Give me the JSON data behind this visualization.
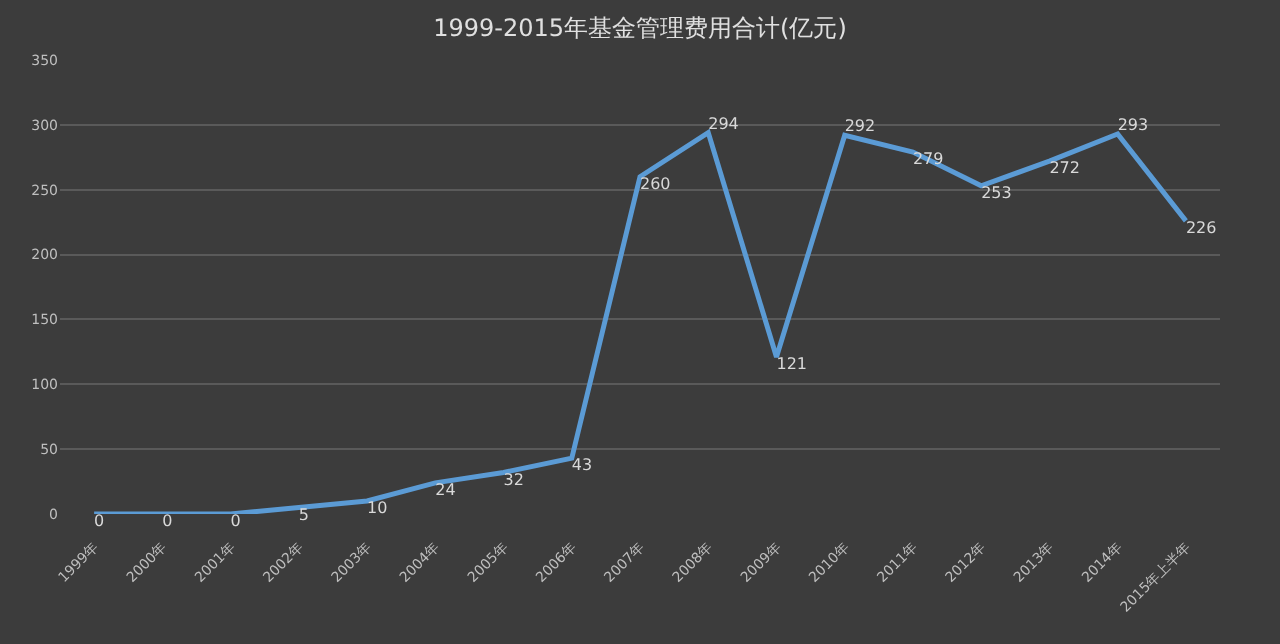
{
  "chart_data": {
    "type": "line",
    "title": "1999-2015年基金管理费用合计(亿元)",
    "categories": [
      "1999年",
      "2000年",
      "2001年",
      "2002年",
      "2003年",
      "2004年",
      "2005年",
      "2006年",
      "2007年",
      "2008年",
      "2009年",
      "2010年",
      "2011年",
      "2012年",
      "2013年",
      "2014年",
      "2015年上半年"
    ],
    "series": [
      {
        "color": "#5b9bd5",
        "values": [
          0,
          0,
          0,
          5,
          10,
          24,
          32,
          43,
          260,
          294,
          121,
          292,
          279,
          253,
          272,
          293,
          226
        ]
      }
    ],
    "ylim": [
      0,
      350
    ],
    "yticks": [
      0,
      50,
      100,
      150,
      200,
      250,
      300,
      350
    ],
    "grid": "y",
    "data_labels": true,
    "marker": "none",
    "line_style": "solid"
  }
}
